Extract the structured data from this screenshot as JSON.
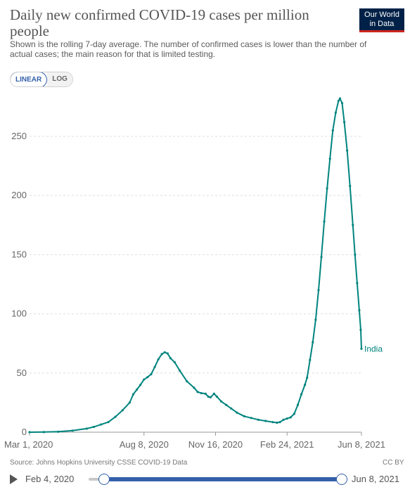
{
  "header": {
    "title": "Daily new confirmed COVID-19 cases per million people",
    "subtitle": "Shown is the rolling 7-day average. The number of confirmed cases is lower than the number of actual cases; the main reason for that is limited testing.",
    "logo_line1": "Our World",
    "logo_line2": "in Data"
  },
  "controls": {
    "linear_label": "LINEAR",
    "log_label": "LOG",
    "active_scale": "linear"
  },
  "footer": {
    "source": "Source: Johns Hopkins University CSSE COVID-19 Data",
    "license": "CC BY"
  },
  "timeline": {
    "start_label": "Feb 4, 2020",
    "end_label": "Jun 8, 2021"
  },
  "colors": {
    "series": "#00847e",
    "accent": "#3360a9",
    "logo_bg": "#002147",
    "logo_stripe": "#ce261e",
    "grid": "#dddddd",
    "axis_text": "#666666"
  },
  "chart_data": {
    "type": "line",
    "xlabel": "",
    "ylabel": "",
    "x_ticks": [
      "Mar 1, 2020",
      "Aug 8, 2020",
      "Nov 16, 2020",
      "Feb 24, 2021",
      "Jun 8, 2021"
    ],
    "x_tick_days": [
      0,
      160,
      260,
      360,
      464
    ],
    "y_ticks": [
      0,
      50,
      100,
      150,
      200,
      250
    ],
    "ylim": [
      0,
      285
    ],
    "xlim_days": [
      0,
      464
    ],
    "grid": "horizontal dashed",
    "legend": "inline label at line end",
    "series": [
      {
        "name": "India",
        "points": [
          [
            0,
            0
          ],
          [
            20,
            0.1
          ],
          [
            40,
            0.4
          ],
          [
            60,
            1.3
          ],
          [
            80,
            3.0
          ],
          [
            90,
            4.5
          ],
          [
            100,
            6.5
          ],
          [
            110,
            8.5
          ],
          [
            120,
            13.0
          ],
          [
            130,
            18.5
          ],
          [
            140,
            25.0
          ],
          [
            145,
            32.0
          ],
          [
            150,
            36.0
          ],
          [
            155,
            40.0
          ],
          [
            160,
            44.5
          ],
          [
            165,
            46.5
          ],
          [
            170,
            49.0
          ],
          [
            175,
            55.0
          ],
          [
            180,
            61.5
          ],
          [
            185,
            66.0
          ],
          [
            189,
            67.5
          ],
          [
            193,
            66.5
          ],
          [
            197,
            62.5
          ],
          [
            203,
            59.0
          ],
          [
            210,
            52.0
          ],
          [
            220,
            43.0
          ],
          [
            230,
            37.5
          ],
          [
            235,
            34.0
          ],
          [
            240,
            33.0
          ],
          [
            246,
            32.5
          ],
          [
            250,
            30.0
          ],
          [
            253,
            29.5
          ],
          [
            258,
            32.5
          ],
          [
            262,
            30.0
          ],
          [
            268,
            26.0
          ],
          [
            275,
            23.0
          ],
          [
            282,
            20.0
          ],
          [
            290,
            16.5
          ],
          [
            300,
            13.5
          ],
          [
            310,
            12.0
          ],
          [
            320,
            10.5
          ],
          [
            330,
            9.5
          ],
          [
            340,
            8.5
          ],
          [
            346,
            8.0
          ],
          [
            350,
            8.5
          ],
          [
            355,
            10.5
          ],
          [
            360,
            11.5
          ],
          [
            365,
            12.5
          ],
          [
            370,
            15.5
          ],
          [
            375,
            23.0
          ],
          [
            380,
            32.0
          ],
          [
            385,
            40.0
          ],
          [
            388,
            46.0
          ],
          [
            392,
            61.0
          ],
          [
            396,
            76.0
          ],
          [
            400,
            95.0
          ],
          [
            404,
            120.0
          ],
          [
            408,
            148.0
          ],
          [
            412,
            178.0
          ],
          [
            416,
            206.0
          ],
          [
            420,
            231.0
          ],
          [
            424,
            255.0
          ],
          [
            428,
            270.0
          ],
          [
            432,
            280.0
          ],
          [
            434,
            282.0
          ],
          [
            437,
            278.0
          ],
          [
            440,
            262.0
          ],
          [
            444,
            238.0
          ],
          [
            448,
            208.0
          ],
          [
            452,
            175.0
          ],
          [
            455,
            150.0
          ],
          [
            458,
            126.0
          ],
          [
            461,
            103.0
          ],
          [
            463,
            86.5
          ],
          [
            464,
            70.5
          ]
        ]
      }
    ]
  }
}
